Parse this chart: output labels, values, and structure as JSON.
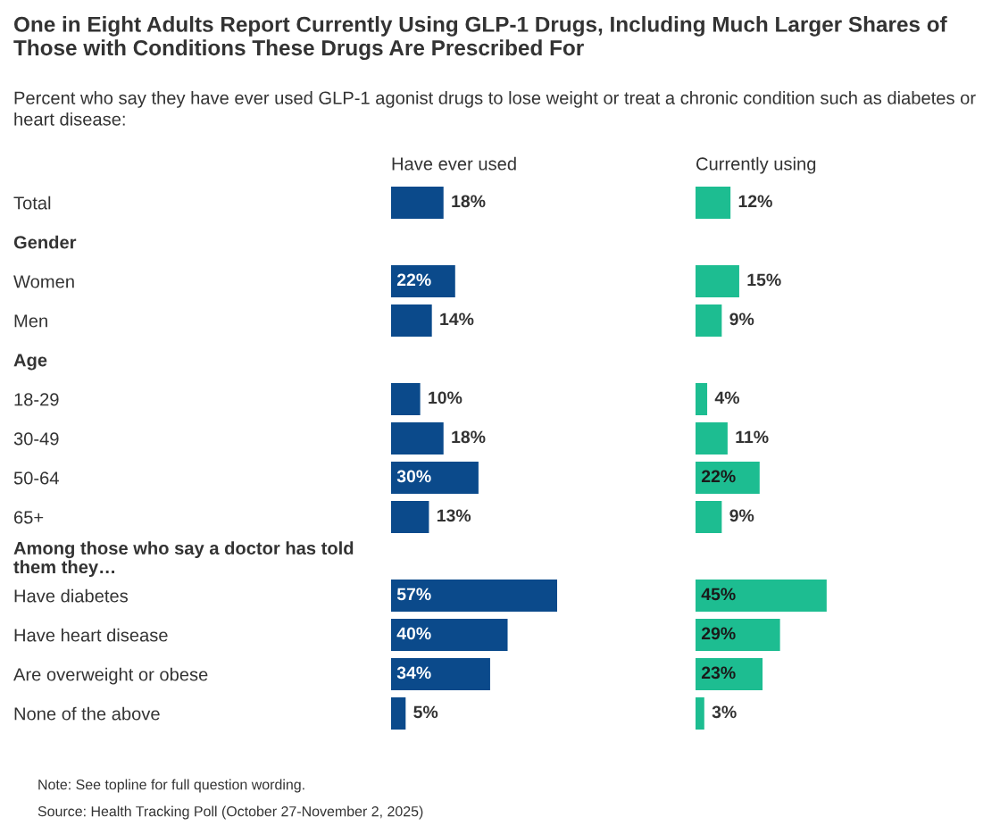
{
  "chart_data": [
    {
      "type": "bar",
      "orientation": "horizontal",
      "legend": false,
      "title": "One in Eight Adults Report Currently Using GLP-1 Drugs, Including Much Larger Shares of Those with Conditions These Drugs Are Prescribed For",
      "subtitle": "Percent who say they have ever used GLP-1 agonist drugs to lose weight or treat a chronic condition such as diabetes or heart disease:",
      "categories": [
        "Total",
        "Gender",
        "Women",
        "Men",
        "Age",
        "18-29",
        "30-49",
        "50-64",
        "65+",
        "Among those who say a doctor has told\nthem they…",
        "Have diabetes",
        "Have heart disease",
        "Are overweight or obese",
        "None of the above"
      ],
      "series": [
        {
          "name": "Have ever used",
          "color": "#0b4a8b",
          "values": [
            18,
            null,
            22,
            14,
            null,
            10,
            18,
            30,
            13,
            null,
            57,
            40,
            34,
            5
          ],
          "value_labels": [
            "18%",
            null,
            "22%",
            "14%",
            null,
            "10%",
            "18%",
            "30%",
            "13%",
            null,
            "57%",
            "40%",
            "34%",
            "5%"
          ]
        }
      ],
      "annotations": [
        "Note: See topline for full question wording.",
        "Source: Health Tracking Poll (October 27-November 2, 2025)"
      ]
    },
    {
      "type": "bar",
      "orientation": "horizontal",
      "legend": false,
      "categories": [
        null,
        null,
        null,
        null,
        null,
        null,
        null,
        null,
        null,
        null,
        null,
        null,
        null,
        null
      ],
      "series": [
        {
          "name": "Currently using",
          "color": "#1dbd91",
          "values": [
            12,
            null,
            15,
            9,
            null,
            4,
            11,
            22,
            9,
            null,
            45,
            29,
            23,
            3
          ],
          "value_labels": [
            "12%",
            null,
            "15%",
            "9%",
            null,
            "4%",
            "11%",
            "22%",
            "9%",
            null,
            "45%",
            "29%",
            "23%",
            "3%"
          ]
        }
      ]
    }
  ]
}
